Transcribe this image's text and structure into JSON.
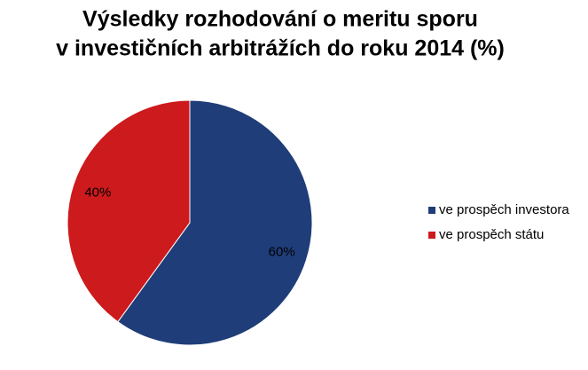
{
  "chart_data": {
    "type": "pie",
    "title": [
      "Výsledky rozhodování o meritu sporu",
      "v investičních arbitrážích do roku 2014 (%)"
    ],
    "categories": [
      "ve prospěch investora",
      "ve prospěch státu"
    ],
    "values": [
      60,
      40
    ],
    "value_labels": [
      "60%",
      "40%"
    ],
    "colors": [
      "#1f3d78",
      "#cc1a1d"
    ],
    "legend": "right"
  }
}
